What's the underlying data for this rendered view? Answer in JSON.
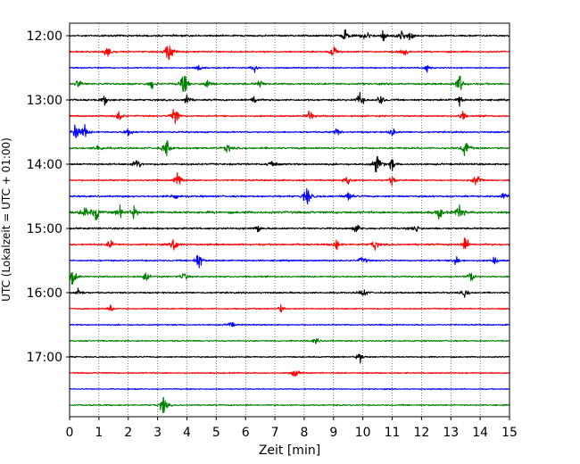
{
  "chart_data": {
    "type": "line",
    "title": "",
    "xlabel": "Zeit  [min]",
    "ylabel": "UTC (Lokalzeit = UTC + 01:00)",
    "xlim": [
      0,
      15
    ],
    "x_ticks": [
      "0",
      "1",
      "2",
      "3",
      "4",
      "5",
      "6",
      "7",
      "8",
      "9",
      "10",
      "11",
      "12",
      "13",
      "14",
      "15"
    ],
    "y_tick_labels": [
      "12:00",
      "13:00",
      "14:00",
      "15:00",
      "16:00",
      "17:00"
    ],
    "grid": "vertical-dotted",
    "trace_colors": [
      "#000000",
      "#ff0000",
      "#0000ff",
      "#008000"
    ],
    "rows": [
      {
        "time": "12:00",
        "color": "#000000",
        "amplitude": 0.35,
        "events": [
          {
            "x": 9.4,
            "a": 1.0
          },
          {
            "x": 10.1,
            "a": 1.2
          },
          {
            "x": 10.7,
            "a": 0.9
          },
          {
            "x": 11.3,
            "a": 1.0
          },
          {
            "x": 11.6,
            "a": 0.7
          }
        ]
      },
      {
        "time": "12:15",
        "color": "#ff0000",
        "amplitude": 0.3,
        "events": [
          {
            "x": 1.3,
            "a": 1.3
          },
          {
            "x": 3.4,
            "a": 2.3
          },
          {
            "x": 9.0,
            "a": 1.0
          },
          {
            "x": 11.4,
            "a": 0.7
          }
        ]
      },
      {
        "time": "12:30",
        "color": "#0000ff",
        "amplitude": 0.25,
        "events": [
          {
            "x": 4.4,
            "a": 0.6
          },
          {
            "x": 6.3,
            "a": 0.6
          },
          {
            "x": 12.2,
            "a": 0.6
          }
        ]
      },
      {
        "time": "12:45",
        "color": "#008000",
        "amplitude": 0.35,
        "events": [
          {
            "x": 0.3,
            "a": 0.8
          },
          {
            "x": 2.8,
            "a": 0.8
          },
          {
            "x": 3.9,
            "a": 2.6
          },
          {
            "x": 4.7,
            "a": 0.8
          },
          {
            "x": 6.5,
            "a": 0.7
          },
          {
            "x": 13.3,
            "a": 1.8
          }
        ]
      },
      {
        "time": "13:00",
        "color": "#000000",
        "amplitude": 0.35,
        "events": [
          {
            "x": 1.2,
            "a": 0.6
          },
          {
            "x": 4.0,
            "a": 0.8
          },
          {
            "x": 6.3,
            "a": 0.8
          },
          {
            "x": 9.9,
            "a": 1.3
          },
          {
            "x": 10.6,
            "a": 0.8
          },
          {
            "x": 13.3,
            "a": 0.8
          }
        ]
      },
      {
        "time": "13:15",
        "color": "#ff0000",
        "amplitude": 0.3,
        "events": [
          {
            "x": 1.7,
            "a": 0.9
          },
          {
            "x": 3.6,
            "a": 2.0
          },
          {
            "x": 8.2,
            "a": 1.0
          },
          {
            "x": 13.4,
            "a": 0.8
          }
        ]
      },
      {
        "time": "13:30",
        "color": "#0000ff",
        "amplitude": 0.3,
        "events": [
          {
            "x": 0.2,
            "a": 1.5
          },
          {
            "x": 0.5,
            "a": 1.2
          },
          {
            "x": 2.0,
            "a": 0.8
          },
          {
            "x": 9.1,
            "a": 0.6
          },
          {
            "x": 11.0,
            "a": 0.6
          }
        ]
      },
      {
        "time": "13:45",
        "color": "#008000",
        "amplitude": 0.35,
        "events": [
          {
            "x": 1.0,
            "a": 0.7
          },
          {
            "x": 3.3,
            "a": 1.7
          },
          {
            "x": 5.4,
            "a": 0.8
          },
          {
            "x": 13.5,
            "a": 1.6
          }
        ]
      },
      {
        "time": "14:00",
        "color": "#000000",
        "amplitude": 0.35,
        "events": [
          {
            "x": 2.3,
            "a": 1.0
          },
          {
            "x": 6.9,
            "a": 0.9
          },
          {
            "x": 10.5,
            "a": 2.2
          },
          {
            "x": 11.0,
            "a": 0.9
          }
        ]
      },
      {
        "time": "14:15",
        "color": "#ff0000",
        "amplitude": 0.3,
        "events": [
          {
            "x": 3.7,
            "a": 1.6
          },
          {
            "x": 9.5,
            "a": 0.9
          },
          {
            "x": 11.0,
            "a": 0.7
          },
          {
            "x": 13.9,
            "a": 1.4
          }
        ]
      },
      {
        "time": "14:30",
        "color": "#0000ff",
        "amplitude": 0.35,
        "events": [
          {
            "x": 3.6,
            "a": 0.7
          },
          {
            "x": 8.1,
            "a": 2.0
          },
          {
            "x": 9.5,
            "a": 0.9
          },
          {
            "x": 14.8,
            "a": 0.7
          }
        ]
      },
      {
        "time": "14:45",
        "color": "#008000",
        "amplitude": 0.45,
        "events": [
          {
            "x": 0.5,
            "a": 1.0
          },
          {
            "x": 0.9,
            "a": 1.5
          },
          {
            "x": 1.7,
            "a": 1.0
          },
          {
            "x": 2.2,
            "a": 0.9
          },
          {
            "x": 12.6,
            "a": 1.0
          },
          {
            "x": 13.3,
            "a": 1.7
          }
        ]
      },
      {
        "time": "15:00",
        "color": "#000000",
        "amplitude": 0.35,
        "events": [
          {
            "x": 6.4,
            "a": 0.7
          },
          {
            "x": 9.8,
            "a": 0.7
          },
          {
            "x": 11.8,
            "a": 0.7
          }
        ]
      },
      {
        "time": "15:15",
        "color": "#ff0000",
        "amplitude": 0.35,
        "events": [
          {
            "x": 1.4,
            "a": 0.8
          },
          {
            "x": 3.6,
            "a": 1.3
          },
          {
            "x": 9.1,
            "a": 0.8
          },
          {
            "x": 10.4,
            "a": 0.9
          },
          {
            "x": 13.5,
            "a": 1.3
          }
        ]
      },
      {
        "time": "15:30",
        "color": "#0000ff",
        "amplitude": 0.3,
        "events": [
          {
            "x": 4.4,
            "a": 1.5
          },
          {
            "x": 10.0,
            "a": 0.8
          },
          {
            "x": 13.2,
            "a": 0.8
          },
          {
            "x": 14.5,
            "a": 0.7
          }
        ]
      },
      {
        "time": "15:45",
        "color": "#008000",
        "amplitude": 0.3,
        "events": [
          {
            "x": 0.1,
            "a": 1.9
          },
          {
            "x": 2.6,
            "a": 0.7
          },
          {
            "x": 3.9,
            "a": 0.8
          },
          {
            "x": 13.7,
            "a": 1.0
          }
        ]
      },
      {
        "time": "16:00",
        "color": "#000000",
        "amplitude": 0.3,
        "events": [
          {
            "x": 0.3,
            "a": 0.9
          },
          {
            "x": 10.0,
            "a": 1.0
          },
          {
            "x": 13.5,
            "a": 0.7
          }
        ]
      },
      {
        "time": "16:15",
        "color": "#ff0000",
        "amplitude": 0.25,
        "events": [
          {
            "x": 1.4,
            "a": 0.6
          },
          {
            "x": 7.2,
            "a": 0.6
          }
        ]
      },
      {
        "time": "16:30",
        "color": "#0000ff",
        "amplitude": 0.25,
        "events": [
          {
            "x": 5.5,
            "a": 0.6
          }
        ]
      },
      {
        "time": "16:45",
        "color": "#008000",
        "amplitude": 0.25,
        "events": [
          {
            "x": 8.4,
            "a": 0.5
          }
        ]
      },
      {
        "time": "17:00",
        "color": "#000000",
        "amplitude": 0.25,
        "events": [
          {
            "x": 9.9,
            "a": 0.8
          }
        ]
      },
      {
        "time": "17:15",
        "color": "#ff0000",
        "amplitude": 0.25,
        "events": [
          {
            "x": 7.7,
            "a": 0.8
          }
        ]
      },
      {
        "time": "17:30",
        "color": "#0000ff",
        "amplitude": 0.2,
        "events": []
      },
      {
        "time": "17:45",
        "color": "#008000",
        "amplitude": 0.25,
        "events": [
          {
            "x": 3.2,
            "a": 1.8
          }
        ]
      }
    ]
  }
}
